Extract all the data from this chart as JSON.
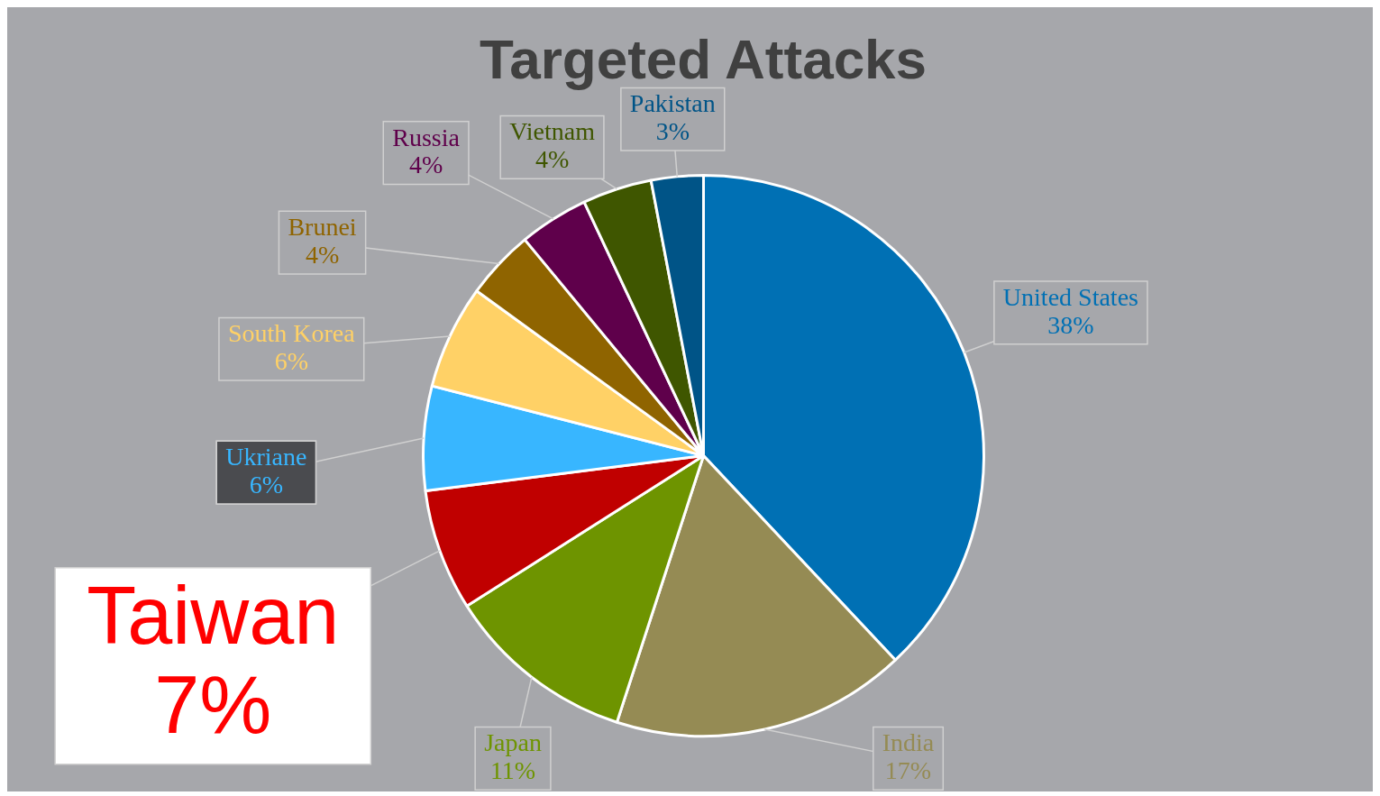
{
  "chart_data": {
    "type": "pie",
    "title": "Targeted Attacks",
    "categories": [
      "United States",
      "India",
      "Japan",
      "Taiwan",
      "Ukriane",
      "South Korea",
      "Brunei",
      "Russia",
      "Vietnam",
      "Pakistan"
    ],
    "values": [
      38,
      17,
      11,
      7,
      6,
      6,
      4,
      4,
      4,
      3
    ],
    "colors": [
      "#0070b4",
      "#958b54",
      "#6e9400",
      "#c00000",
      "#38b6ff",
      "#ffd166",
      "#8f6400",
      "#5f004b",
      "#3f5600",
      "#005487"
    ],
    "value_labels": [
      "38%",
      "17%",
      "11%",
      "7%",
      "6%",
      "6%",
      "4%",
      "4%",
      "4%",
      "3%"
    ],
    "legend": false
  }
}
